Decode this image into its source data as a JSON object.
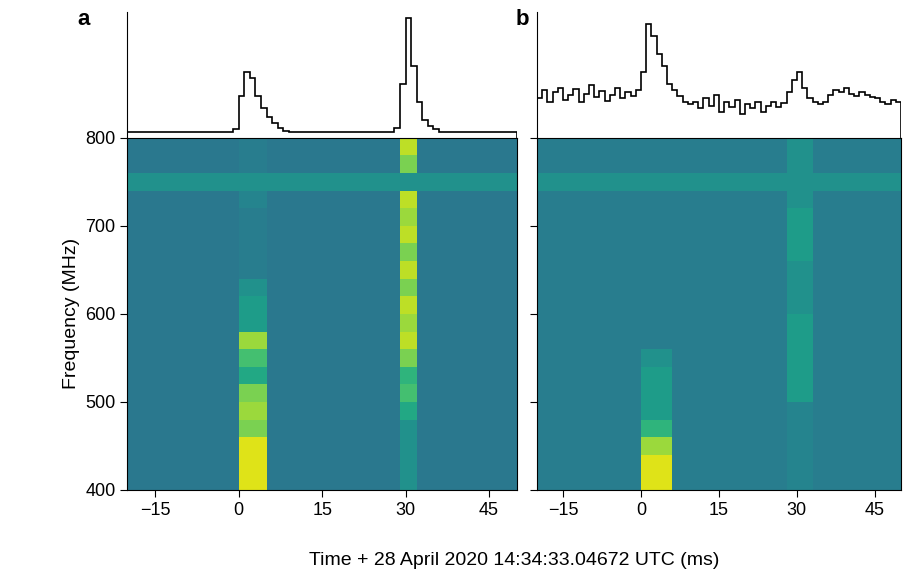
{
  "chart_data": [
    {
      "type": "heatmap",
      "title": "a",
      "xlabel": "Time + 28 April 2020 14:34:33.04672 UTC (ms)",
      "ylabel": "Frequency (MHz)",
      "xlim": [
        -20,
        50
      ],
      "ylim": [
        400,
        800
      ],
      "xticks": [
        {
          "value": -15,
          "label": "−15"
        },
        0,
        15,
        30,
        45
      ],
      "yticks": [
        400,
        500,
        600,
        700,
        800
      ],
      "x_edges": [
        -20,
        0,
        5,
        29,
        32,
        50
      ],
      "y_edges": [
        400,
        420,
        440,
        460,
        480,
        500,
        520,
        540,
        560,
        580,
        600,
        620,
        640,
        660,
        680,
        700,
        720,
        740,
        760,
        780,
        800
      ],
      "color_range": [
        0,
        1
      ],
      "cells": [
        [
          0.4,
          0.95,
          0.4,
          0.5,
          0.4
        ],
        [
          0.4,
          0.95,
          0.4,
          0.5,
          0.4
        ],
        [
          0.4,
          0.95,
          0.4,
          0.5,
          0.4
        ],
        [
          0.4,
          0.8,
          0.4,
          0.5,
          0.4
        ],
        [
          0.4,
          0.85,
          0.4,
          0.6,
          0.4
        ],
        [
          0.4,
          0.8,
          0.4,
          0.7,
          0.4
        ],
        [
          0.4,
          0.6,
          0.4,
          0.65,
          0.4
        ],
        [
          0.4,
          0.7,
          0.4,
          0.8,
          0.4
        ],
        [
          0.4,
          0.85,
          0.4,
          0.9,
          0.4
        ],
        [
          0.4,
          0.55,
          0.4,
          0.85,
          0.4
        ],
        [
          0.4,
          0.55,
          0.4,
          0.9,
          0.4
        ],
        [
          0.4,
          0.5,
          0.4,
          0.8,
          0.4
        ],
        [
          0.4,
          0.42,
          0.4,
          0.9,
          0.4
        ],
        [
          0.4,
          0.42,
          0.4,
          0.8,
          0.4
        ],
        [
          0.4,
          0.42,
          0.4,
          0.9,
          0.4
        ],
        [
          0.4,
          0.42,
          0.4,
          0.85,
          0.4
        ],
        [
          0.4,
          0.45,
          0.4,
          0.9,
          0.4
        ],
        [
          0.5,
          0.5,
          0.5,
          0.5,
          0.5
        ],
        [
          0.4,
          0.42,
          0.4,
          0.8,
          0.4
        ],
        [
          0.4,
          0.42,
          0.4,
          0.9,
          0.4
        ]
      ],
      "profile": {
        "type": "step",
        "color": "#000000",
        "tick_labels": false,
        "ylim": [
          0,
          1.05
        ],
        "x": [
          -20,
          -19,
          -18,
          -17,
          -16,
          -15,
          -14,
          -13,
          -12,
          -11,
          -10,
          -9,
          -8,
          -7,
          -6,
          -5,
          -4,
          -3,
          -2,
          -1,
          0,
          1,
          2,
          3,
          4,
          5,
          6,
          7,
          8,
          9,
          10,
          11,
          12,
          13,
          14,
          15,
          16,
          17,
          18,
          19,
          20,
          21,
          22,
          23,
          24,
          25,
          26,
          27,
          28,
          29,
          30,
          31,
          32,
          33,
          34,
          35,
          36,
          37,
          38,
          39,
          40,
          41,
          42,
          43,
          44,
          45,
          46,
          47,
          48,
          49,
          50
        ],
        "values": [
          0.05,
          0.05,
          0.05,
          0.05,
          0.05,
          0.05,
          0.05,
          0.05,
          0.05,
          0.05,
          0.05,
          0.05,
          0.05,
          0.05,
          0.05,
          0.05,
          0.05,
          0.05,
          0.05,
          0.07,
          0.35,
          0.55,
          0.5,
          0.35,
          0.25,
          0.17,
          0.12,
          0.08,
          0.06,
          0.05,
          0.05,
          0.05,
          0.05,
          0.05,
          0.05,
          0.05,
          0.05,
          0.05,
          0.05,
          0.05,
          0.05,
          0.05,
          0.05,
          0.05,
          0.05,
          0.05,
          0.05,
          0.05,
          0.08,
          0.45,
          1.0,
          0.6,
          0.3,
          0.15,
          0.1,
          0.07,
          0.05,
          0.05,
          0.05,
          0.05,
          0.05,
          0.05,
          0.05,
          0.05,
          0.05,
          0.05,
          0.05,
          0.05,
          0.05,
          0.05
        ]
      }
    },
    {
      "type": "heatmap",
      "title": "b",
      "tick_labels": "x",
      "xlim": [
        -20,
        50
      ],
      "ylim": [
        400,
        800
      ],
      "xticks": [
        {
          "value": -15,
          "label": "−15"
        },
        0,
        15,
        30,
        45
      ],
      "yticks": [
        400,
        500,
        600,
        700,
        800
      ],
      "x_edges": [
        -20,
        0,
        6,
        28,
        33,
        50
      ],
      "y_edges": [
        400,
        420,
        440,
        460,
        480,
        500,
        520,
        540,
        560,
        580,
        600,
        620,
        640,
        660,
        680,
        700,
        720,
        740,
        760,
        780,
        800
      ],
      "color_range": [
        0,
        1
      ],
      "cells": [
        [
          0.42,
          0.95,
          0.42,
          0.45,
          0.42
        ],
        [
          0.42,
          0.95,
          0.42,
          0.45,
          0.42
        ],
        [
          0.42,
          0.85,
          0.42,
          0.45,
          0.42
        ],
        [
          0.42,
          0.65,
          0.42,
          0.45,
          0.42
        ],
        [
          0.42,
          0.55,
          0.42,
          0.45,
          0.42
        ],
        [
          0.42,
          0.55,
          0.42,
          0.55,
          0.42
        ],
        [
          0.42,
          0.55,
          0.42,
          0.55,
          0.42
        ],
        [
          0.42,
          0.5,
          0.42,
          0.55,
          0.42
        ],
        [
          0.42,
          0.42,
          0.42,
          0.55,
          0.42
        ],
        [
          0.42,
          0.42,
          0.42,
          0.55,
          0.42
        ],
        [
          0.42,
          0.42,
          0.42,
          0.5,
          0.42
        ],
        [
          0.42,
          0.42,
          0.42,
          0.5,
          0.42
        ],
        [
          0.42,
          0.42,
          0.42,
          0.5,
          0.42
        ],
        [
          0.42,
          0.42,
          0.42,
          0.55,
          0.42
        ],
        [
          0.42,
          0.42,
          0.42,
          0.55,
          0.42
        ],
        [
          0.42,
          0.42,
          0.42,
          0.55,
          0.42
        ],
        [
          0.42,
          0.42,
          0.42,
          0.5,
          0.42
        ],
        [
          0.5,
          0.5,
          0.5,
          0.5,
          0.5
        ],
        [
          0.42,
          0.42,
          0.42,
          0.5,
          0.42
        ],
        [
          0.42,
          0.42,
          0.42,
          0.5,
          0.42
        ]
      ],
      "profile": {
        "type": "step",
        "color": "#000000",
        "tick_labels": false,
        "ylim": [
          0,
          1.05
        ],
        "x": [
          -20,
          -19,
          -18,
          -17,
          -16,
          -15,
          -14,
          -13,
          -12,
          -11,
          -10,
          -9,
          -8,
          -7,
          -6,
          -5,
          -4,
          -3,
          -2,
          -1,
          0,
          1,
          2,
          3,
          4,
          5,
          6,
          7,
          8,
          9,
          10,
          11,
          12,
          13,
          14,
          15,
          16,
          17,
          18,
          19,
          20,
          21,
          22,
          23,
          24,
          25,
          26,
          27,
          28,
          29,
          30,
          31,
          32,
          33,
          34,
          35,
          36,
          37,
          38,
          39,
          40,
          41,
          42,
          43,
          44,
          45,
          46,
          47,
          48,
          49,
          50
        ],
        "values": [
          0.33,
          0.4,
          0.3,
          0.38,
          0.42,
          0.32,
          0.36,
          0.41,
          0.3,
          0.37,
          0.44,
          0.34,
          0.39,
          0.31,
          0.36,
          0.42,
          0.33,
          0.38,
          0.35,
          0.4,
          0.55,
          0.95,
          0.85,
          0.7,
          0.6,
          0.45,
          0.4,
          0.35,
          0.3,
          0.28,
          0.3,
          0.25,
          0.33,
          0.27,
          0.36,
          0.22,
          0.3,
          0.26,
          0.32,
          0.2,
          0.28,
          0.25,
          0.3,
          0.22,
          0.27,
          0.3,
          0.26,
          0.29,
          0.38,
          0.48,
          0.55,
          0.42,
          0.33,
          0.3,
          0.28,
          0.3,
          0.36,
          0.4,
          0.38,
          0.42,
          0.37,
          0.35,
          0.38,
          0.36,
          0.34,
          0.33,
          0.3,
          0.28,
          0.32,
          0.3
        ]
      }
    }
  ]
}
